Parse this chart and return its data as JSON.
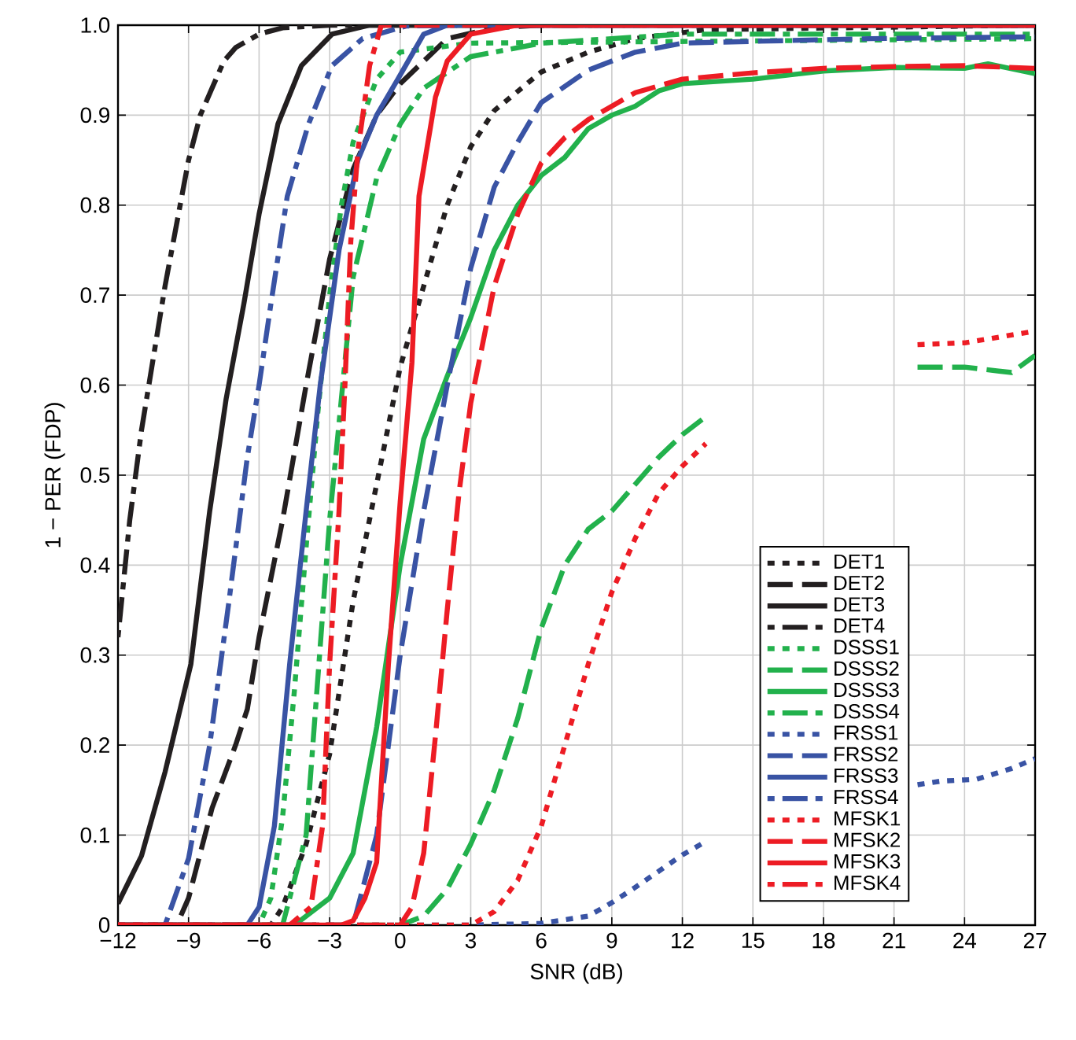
{
  "chart_data": {
    "type": "line",
    "xlabel": "SNR  (dB)",
    "ylabel": "1 − PER   (FDP)",
    "xlim": [
      -12,
      27
    ],
    "ylim": [
      0,
      1
    ],
    "xticks": [
      {
        "value": -12,
        "label": "−12"
      },
      {
        "value": -9,
        "label": "−9"
      },
      {
        "value": -6,
        "label": "−6"
      },
      {
        "value": -3,
        "label": "−3"
      },
      0,
      3,
      6,
      9,
      12,
      15,
      18,
      21,
      24,
      27
    ],
    "yticks": [
      0,
      0.1,
      0.2,
      0.3,
      0.4,
      0.5,
      0.6,
      0.7,
      0.8,
      0.9,
      {
        "value": 1,
        "label": "1.0"
      }
    ],
    "grid": true,
    "legend": "right",
    "series": [
      {
        "name": "DET1",
        "color": "#231f20",
        "line_style": "dotted",
        "x": [
          -12,
          -5.5,
          -5,
          -4,
          -3,
          -2,
          -1,
          0,
          1,
          2,
          3,
          4,
          6,
          8,
          10,
          13,
          27
        ],
        "values": [
          0,
          0,
          0.02,
          0.09,
          0.19,
          0.36,
          0.49,
          0.62,
          0.71,
          0.8,
          0.865,
          0.905,
          0.948,
          0.97,
          0.985,
          0.995,
          1
        ]
      },
      {
        "name": "DET2",
        "color": "#231f20",
        "line_style": "dashed",
        "x": [
          -12,
          -9.5,
          -9,
          -8.5,
          -8,
          -7,
          -6.5,
          -6,
          -5,
          -4,
          -3,
          -2,
          -1,
          0,
          1,
          2,
          4,
          6,
          27
        ],
        "values": [
          0,
          0,
          0.03,
          0.08,
          0.13,
          0.2,
          0.24,
          0.32,
          0.45,
          0.6,
          0.74,
          0.84,
          0.9,
          0.935,
          0.96,
          0.985,
          0.997,
          1,
          1
        ]
      },
      {
        "name": "DET3",
        "color": "#231f20",
        "line_style": "solid",
        "x": [
          -12,
          -11,
          -10,
          -8.9,
          -8.1,
          -7.4,
          -6.65,
          -6,
          -5.2,
          -4.2,
          -2.9,
          -1.3,
          27
        ],
        "values": [
          0.024,
          0.077,
          0.17,
          0.29,
          0.46,
          0.585,
          0.69,
          0.79,
          0.89,
          0.955,
          0.99,
          1,
          1
        ]
      },
      {
        "name": "DET4",
        "color": "#231f20",
        "line_style": "dashdot",
        "x": [
          -12,
          -11.5,
          -11,
          -10.5,
          -10,
          -9.5,
          -9,
          -8.5,
          -8,
          -7.5,
          -7,
          -6,
          -5,
          -3,
          27
        ],
        "values": [
          0.32,
          0.45,
          0.55,
          0.63,
          0.71,
          0.78,
          0.85,
          0.9,
          0.93,
          0.96,
          0.975,
          0.99,
          0.997,
          1,
          1
        ]
      },
      {
        "name": "DSSS1",
        "color": "#22b14c",
        "line_style": "dotted",
        "x": [
          -12,
          -6,
          -5.5,
          -5,
          -4.5,
          -4,
          -3.5,
          -3,
          -2.5,
          -2,
          -1,
          0,
          3,
          27
        ],
        "values": [
          0,
          0,
          0.03,
          0.12,
          0.26,
          0.42,
          0.57,
          0.7,
          0.8,
          0.87,
          0.94,
          0.97,
          0.98,
          0.985
        ]
      },
      {
        "name": "DSSS2",
        "color": "#22b14c",
        "line_style": "dashed",
        "x": [
          -12,
          0,
          1,
          2,
          3,
          4,
          5,
          6,
          7,
          8,
          9,
          10,
          11,
          12,
          13,
          17,
          22,
          24,
          26,
          27
        ],
        "values": [
          0,
          0,
          0.01,
          0.04,
          0.09,
          0.15,
          0.23,
          0.33,
          0.4,
          0.44,
          0.46,
          0.49,
          0.52,
          0.545,
          0.565,
          null,
          0.62,
          0.62,
          0.614,
          0.633
        ]
      },
      {
        "name": "DSSS3",
        "color": "#22b14c",
        "line_style": "solid",
        "x": [
          -12,
          -4.5,
          -3,
          -2,
          -1,
          0,
          1,
          2,
          3,
          4,
          5,
          6,
          7,
          8,
          9,
          10,
          11,
          12,
          15,
          18,
          21,
          24,
          25,
          27
        ],
        "values": [
          0,
          0,
          0.03,
          0.08,
          0.22,
          0.4,
          0.54,
          0.61,
          0.675,
          0.75,
          0.8,
          0.833,
          0.853,
          0.885,
          0.9,
          0.91,
          0.927,
          0.935,
          0.94,
          0.949,
          0.953,
          0.952,
          0.957,
          0.946
        ]
      },
      {
        "name": "DSSS4",
        "color": "#22b14c",
        "line_style": "dashdot",
        "x": [
          -12,
          -5,
          -4,
          -3,
          -2,
          -1,
          0,
          1,
          3,
          6,
          12,
          27
        ],
        "values": [
          0,
          0,
          0.1,
          0.45,
          0.72,
          0.83,
          0.89,
          0.93,
          0.965,
          0.98,
          0.99,
          0.99
        ]
      },
      {
        "name": "FRSS1",
        "color": "#3953a4",
        "line_style": "dotted",
        "x": [
          -12,
          3,
          6,
          8,
          9,
          10,
          11,
          12,
          13,
          17,
          22,
          23,
          24.5,
          26,
          27
        ],
        "values": [
          0,
          0,
          0.002,
          0.01,
          0.025,
          0.042,
          0.06,
          0.078,
          0.093,
          null,
          0.156,
          0.16,
          0.162,
          0.174,
          0.185
        ]
      },
      {
        "name": "FRSS2",
        "color": "#3953a4",
        "line_style": "dashed",
        "x": [
          -12,
          -2,
          -1,
          0,
          1,
          2,
          3,
          4,
          5,
          6,
          8,
          10,
          12,
          15,
          20,
          27
        ],
        "values": [
          0,
          0,
          0.1,
          0.3,
          0.46,
          0.6,
          0.73,
          0.82,
          0.87,
          0.914,
          0.95,
          0.97,
          0.98,
          0.982,
          0.985,
          0.987
        ]
      },
      {
        "name": "FRSS3",
        "color": "#3953a4",
        "line_style": "solid",
        "x": [
          -12,
          -6.5,
          -6,
          -5.35,
          -4.7,
          -4,
          -3.4,
          -2.6,
          -1.8,
          -1,
          -0.1,
          1,
          2,
          27
        ],
        "values": [
          0,
          0,
          0.02,
          0.11,
          0.29,
          0.46,
          0.6,
          0.75,
          0.85,
          0.9,
          0.94,
          0.99,
          1,
          1
        ]
      },
      {
        "name": "FRSS4",
        "color": "#3953a4",
        "line_style": "dashdot",
        "x": [
          -12,
          -10,
          -9,
          -8.1,
          -7.3,
          -6.5,
          -6,
          -5.5,
          -4.8,
          -3.9,
          -2.9,
          -1.6,
          0.25,
          3,
          27
        ],
        "values": [
          0,
          0,
          0.074,
          0.2,
          0.356,
          0.52,
          0.6,
          0.69,
          0.81,
          0.89,
          0.955,
          0.985,
          0.999,
          1,
          1
        ]
      },
      {
        "name": "MFSK1",
        "color": "#ed1c24",
        "line_style": "dotted",
        "x": [
          -12,
          3,
          4,
          5,
          6,
          7,
          8,
          9,
          10,
          11,
          12,
          13,
          17,
          22,
          24,
          27
        ],
        "values": [
          0,
          0,
          0.015,
          0.05,
          0.11,
          0.2,
          0.29,
          0.37,
          0.43,
          0.48,
          0.51,
          0.535,
          null,
          0.645,
          0.647,
          0.66
        ]
      },
      {
        "name": "MFSK2",
        "color": "#ed1c24",
        "line_style": "dashed",
        "x": [
          -12,
          0,
          0.5,
          1,
          1.5,
          2,
          2.5,
          3,
          4,
          5,
          6,
          7,
          8,
          9,
          10,
          12,
          15,
          18,
          21,
          24,
          27
        ],
        "values": [
          0,
          0,
          0.02,
          0.08,
          0.21,
          0.35,
          0.48,
          0.58,
          0.71,
          0.79,
          0.847,
          0.875,
          0.895,
          0.91,
          0.925,
          0.94,
          0.947,
          0.952,
          0.954,
          0.955,
          0.952
        ]
      },
      {
        "name": "MFSK3",
        "color": "#ed1c24",
        "line_style": "solid",
        "x": [
          -12,
          -2.5,
          -2,
          -1.5,
          -1,
          -0.5,
          0,
          0.5,
          0.8,
          1.5,
          2,
          3,
          5,
          27
        ],
        "values": [
          0,
          0,
          0.005,
          0.03,
          0.07,
          0.29,
          0.47,
          0.625,
          0.81,
          0.92,
          0.96,
          0.99,
          1,
          1
        ]
      },
      {
        "name": "MFSK4",
        "color": "#ed1c24",
        "line_style": "dashdot",
        "x": [
          -12,
          -4.7,
          -3.8,
          -3.3,
          -3,
          -2.6,
          -2.35,
          -2.1,
          -1.8,
          -1.3,
          -0.8,
          27
        ],
        "values": [
          0,
          0,
          0.02,
          0.11,
          0.29,
          0.46,
          0.6,
          0.76,
          0.86,
          0.955,
          1,
          1
        ]
      }
    ]
  }
}
